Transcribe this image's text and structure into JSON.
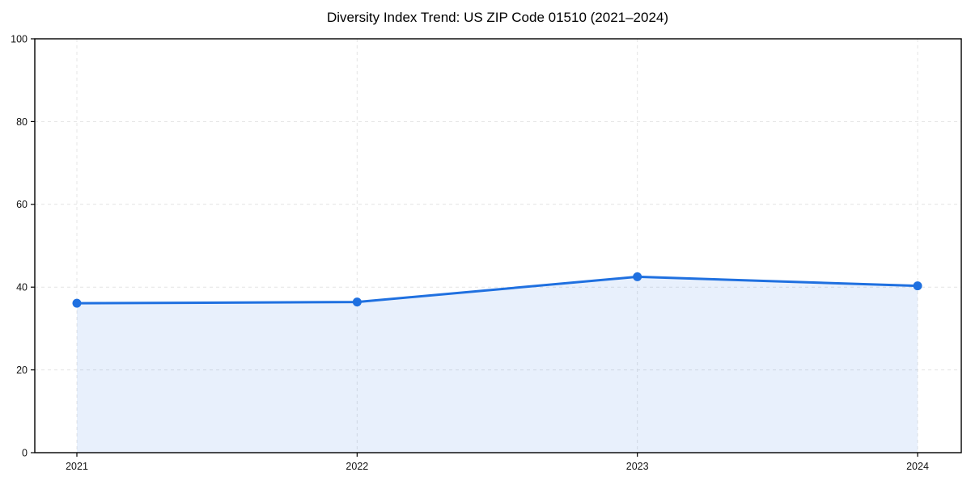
{
  "page": {
    "background": "#ffffff"
  },
  "chart_data": {
    "type": "area",
    "title": "Diversity Index Trend: US ZIP Code 01510 (2021–2024)",
    "categories": [
      "2021",
      "2022",
      "2023",
      "2024"
    ],
    "series": [
      {
        "name": "Diversity Index",
        "values": [
          36.1,
          36.4,
          42.5,
          40.3
        ]
      }
    ],
    "xlabel": "",
    "ylabel": "",
    "ylim": [
      0,
      100
    ],
    "yticks": [
      0,
      20,
      40,
      60,
      80,
      100
    ],
    "grid": true,
    "grid_style": "dashed",
    "legend": false,
    "marker": "circle",
    "colors": {
      "line": "#1f70e0",
      "marker": "#1f70e0",
      "area_fill": "rgba(31, 112, 224, 0.10)",
      "grid": "#e4e4e4",
      "axis": "#000000",
      "tick_text": "#111111",
      "title_text": "#000000",
      "background": "#ffffff"
    }
  }
}
